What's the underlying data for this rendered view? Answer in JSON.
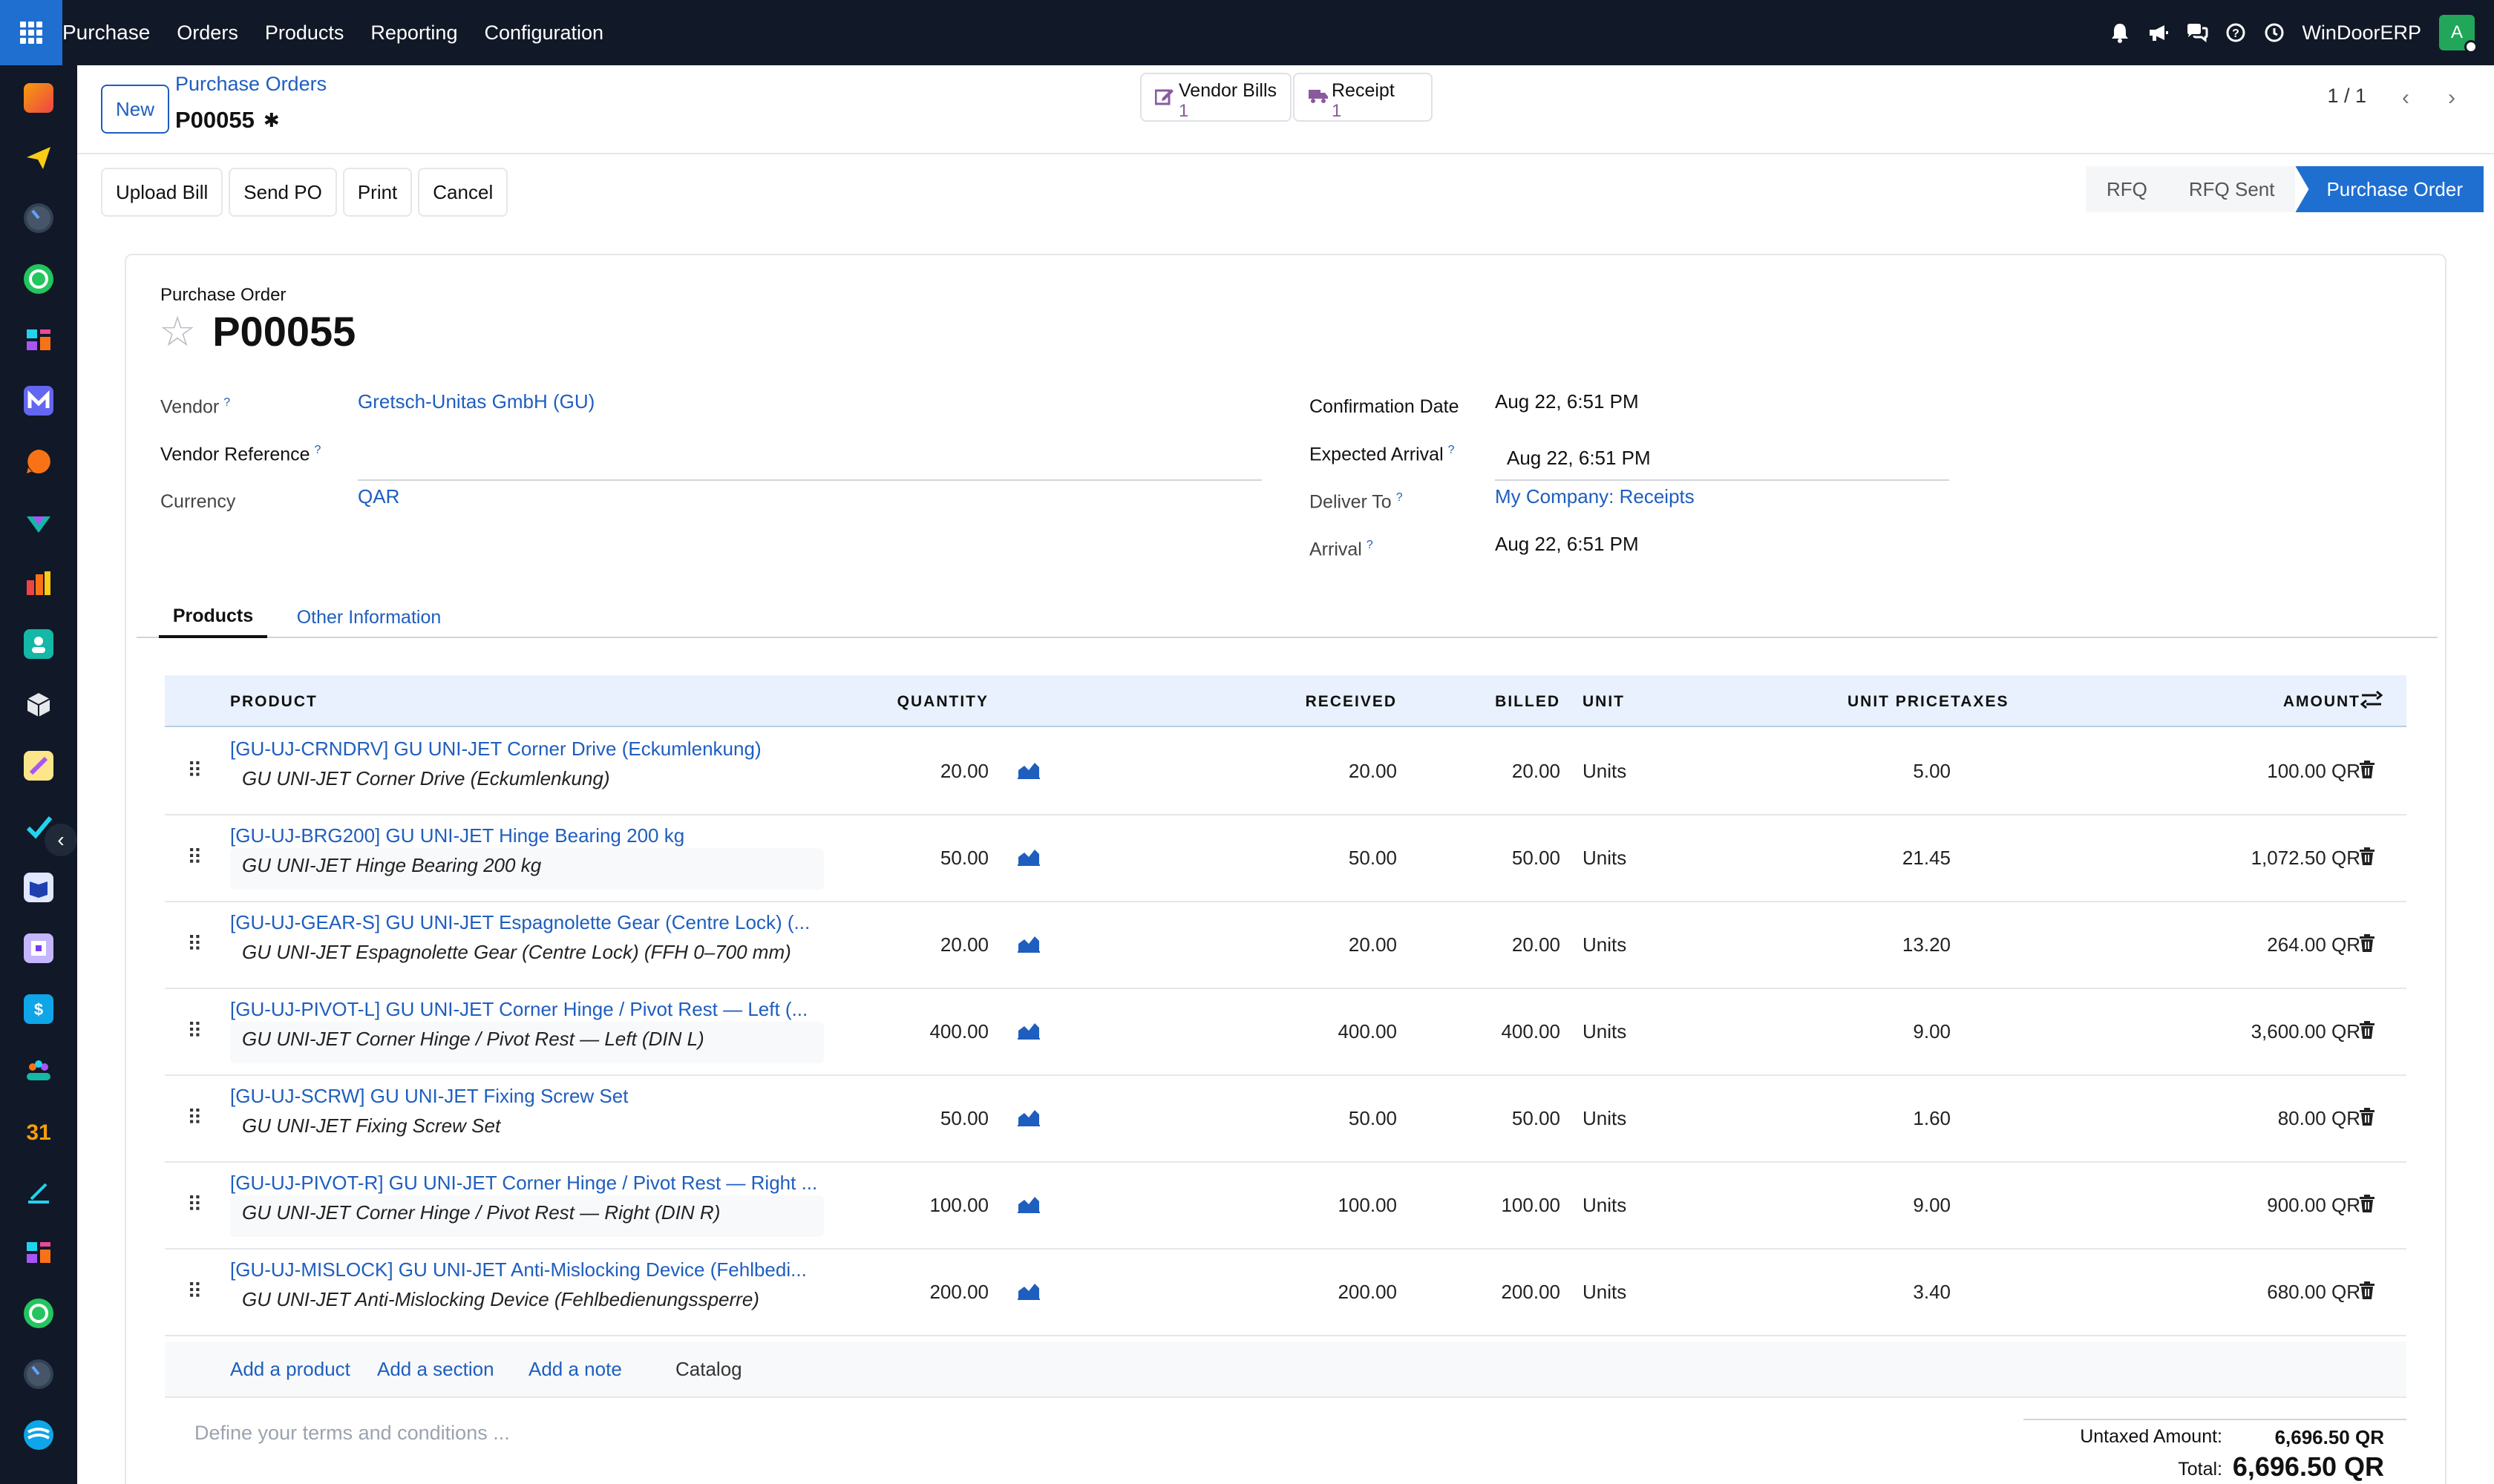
{
  "topbar": {
    "menu": [
      "Purchase",
      "Orders",
      "Products",
      "Reporting",
      "Configuration"
    ],
    "company": "WinDoorERP",
    "avatar_letter": "A"
  },
  "control": {
    "new_label": "New",
    "breadcrumb": "Purchase Orders",
    "record_name": "P00055",
    "smart_buttons": [
      {
        "label": "Vendor Bills",
        "value": "1",
        "icon": "pencil-square-icon"
      },
      {
        "label": "Receipt",
        "value": "1",
        "icon": "truck-icon"
      }
    ],
    "pager": "1 / 1"
  },
  "actions": [
    "Upload Bill",
    "Send PO",
    "Print",
    "Cancel"
  ],
  "status": {
    "stages": [
      "RFQ",
      "RFQ Sent",
      "Purchase Order"
    ],
    "active_stage": "Purchase Order"
  },
  "form": {
    "subtitle": "Purchase Order",
    "title": "P00055",
    "vendor_label": "Vendor",
    "vendor": "Gretsch-Unitas GmbH (GU)",
    "vendor_ref_label": "Vendor Reference",
    "vendor_ref": "",
    "currency_label": "Currency",
    "currency": "QAR",
    "confirmation_label": "Confirmation Date",
    "confirmation": "Aug 22, 6:51 PM",
    "expected_label": "Expected Arrival",
    "expected": "Aug 22, 6:51 PM",
    "deliver_label": "Deliver To",
    "deliver": "My Company: Receipts",
    "arrival_label": "Arrival",
    "arrival": "Aug 22, 6:51 PM",
    "help_mark": "?"
  },
  "tabs": [
    "Products",
    "Other Information"
  ],
  "table": {
    "headers": {
      "product": "PRODUCT",
      "quantity": "QUANTITY",
      "received": "RECEIVED",
      "billed": "BILLED",
      "unit": "UNIT",
      "unit_price": "UNIT PRICE",
      "taxes": "TAXES",
      "amount": "AMOUNT"
    },
    "rows": [
      {
        "product": "[GU-UJ-CRNDRV] GU UNI-JET Corner Drive (Eckumlenkung)",
        "description": "GU UNI-JET Corner Drive (Eckumlenkung)",
        "quantity": "20.00",
        "received": "20.00",
        "billed": "20.00",
        "unit": "Units",
        "unit_price": "5.00",
        "amount": "100.00 QR"
      },
      {
        "product": "[GU-UJ-BRG200] GU UNI-JET Hinge Bearing 200 kg",
        "description": "GU UNI-JET Hinge Bearing 200 kg",
        "quantity": "50.00",
        "received": "50.00",
        "billed": "50.00",
        "unit": "Units",
        "unit_price": "21.45",
        "amount": "1,072.50 QR"
      },
      {
        "product": "[GU-UJ-GEAR-S] GU UNI-JET Espagnolette Gear (Centre Lock) (...",
        "description": "GU UNI-JET Espagnolette Gear (Centre Lock) (FFH 0–700 mm)",
        "quantity": "20.00",
        "received": "20.00",
        "billed": "20.00",
        "unit": "Units",
        "unit_price": "13.20",
        "amount": "264.00 QR"
      },
      {
        "product": "[GU-UJ-PIVOT-L] GU UNI-JET Corner Hinge / Pivot Rest — Left (...",
        "description": "GU UNI-JET Corner Hinge / Pivot Rest — Left (DIN L)",
        "quantity": "400.00",
        "received": "400.00",
        "billed": "400.00",
        "unit": "Units",
        "unit_price": "9.00",
        "amount": "3,600.00 QR"
      },
      {
        "product": "[GU-UJ-SCRW] GU UNI-JET Fixing Screw Set",
        "description": "GU UNI-JET Fixing Screw Set",
        "quantity": "50.00",
        "received": "50.00",
        "billed": "50.00",
        "unit": "Units",
        "unit_price": "1.60",
        "amount": "80.00 QR"
      },
      {
        "product": "[GU-UJ-PIVOT-R] GU UNI-JET Corner Hinge / Pivot Rest — Right ...",
        "description": "GU UNI-JET Corner Hinge / Pivot Rest — Right (DIN R)",
        "quantity": "100.00",
        "received": "100.00",
        "billed": "100.00",
        "unit": "Units",
        "unit_price": "9.00",
        "amount": "900.00 QR"
      },
      {
        "product": "[GU-UJ-MISLOCK] GU UNI-JET Anti-Mislocking Device (Fehlbedi...",
        "description": "GU UNI-JET Anti-Mislocking Device (Fehlbedienungssperre)",
        "quantity": "200.00",
        "received": "200.00",
        "billed": "200.00",
        "unit": "Units",
        "unit_price": "3.40",
        "amount": "680.00 QR"
      }
    ],
    "add_product": "Add a product",
    "add_section": "Add a section",
    "add_note": "Add a note",
    "catalog": "Catalog"
  },
  "footer": {
    "terms_placeholder": "Define your terms and conditions ...",
    "untaxed_label": "Untaxed Amount:",
    "untaxed": "6,696.50 QR",
    "total_label": "Total:",
    "total": "6,696.50 QR"
  },
  "colors": {
    "accent": "#1e5ebf",
    "navbar": "#111827",
    "active_stage": "#1f6fd1",
    "table_header": "#e8f1fd"
  }
}
